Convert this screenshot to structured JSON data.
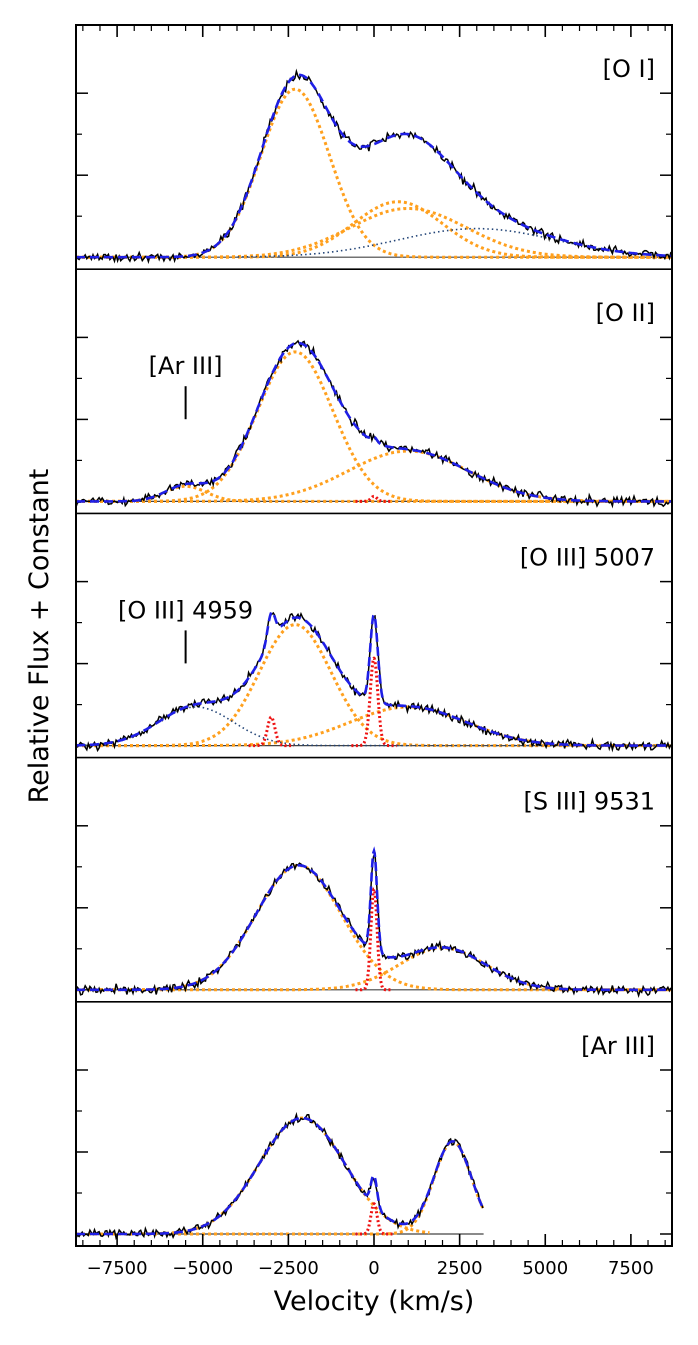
{
  "chart_data": {
    "type": "line",
    "xlabel": "Velocity (km/s)",
    "ylabel": "Relative Flux + Constant",
    "xlim": [
      -8700,
      8700
    ],
    "xticks": [
      -7500,
      -5000,
      -2500,
      0,
      2500,
      5000,
      7500
    ],
    "xtick_labels": [
      "−7500",
      "−5000",
      "−2500",
      "0",
      "2500",
      "5000",
      "7500"
    ],
    "colors": {
      "observed": "#000000",
      "total_fit": "#1f1fe6",
      "broad": "#ffa01e",
      "narrow": "#ee1111",
      "baseline": "#444444"
    },
    "panels": [
      {
        "label": "[O I]",
        "annotation": null,
        "peak_flux": 1.0,
        "components": [
          {
            "name": "broad-1",
            "kind": "broad",
            "center": -2300,
            "sigma": 1000,
            "amp": 1.0
          },
          {
            "name": "broad-2",
            "kind": "broad",
            "center": 700,
            "sigma": 1300,
            "amp": 0.33
          },
          {
            "name": "broad-3",
            "kind": "broad",
            "center": 1000,
            "sigma": 1700,
            "amp": 0.29
          },
          {
            "name": "wing",
            "kind": "extra",
            "center": 3000,
            "sigma": 2300,
            "amp": 0.17,
            "xmin": -4000
          }
        ],
        "data_range": [
          -8700,
          8700
        ]
      },
      {
        "label": "[O II]",
        "annotation": {
          "text": "[Ar III]",
          "x": -5500
        },
        "peak_flux": 0.9,
        "components": [
          {
            "name": "broad-1",
            "kind": "broad",
            "center": -2300,
            "sigma": 1100,
            "amp": 0.89
          },
          {
            "name": "broad-2",
            "kind": "broad",
            "center": 1000,
            "sigma": 1750,
            "amp": 0.3
          },
          {
            "name": "ar-iii",
            "kind": "broad",
            "center": -5500,
            "sigma": 600,
            "amp": 0.09
          },
          {
            "name": "narrow",
            "kind": "narrow",
            "center": 0,
            "sigma": 90,
            "amp": 0.03
          }
        ],
        "data_range": [
          -8700,
          8700
        ]
      },
      {
        "label": "[O III] 5007",
        "annotation": {
          "text": "[O III] 4959",
          "x": -5500
        },
        "peak_flux": 0.9,
        "components": [
          {
            "name": "broad-1",
            "kind": "broad",
            "center": -2300,
            "sigma": 1050,
            "amp": 0.72
          },
          {
            "name": "broad-2",
            "kind": "broad",
            "center": 1000,
            "sigma": 1700,
            "amp": 0.23
          },
          {
            "name": "blue-4959",
            "kind": "extra",
            "center": -5200,
            "sigma": 1100,
            "amp": 0.23
          },
          {
            "name": "narrow-5007",
            "kind": "narrow",
            "center": 0,
            "sigma": 110,
            "amp": 0.52
          },
          {
            "name": "narrow-4959",
            "kind": "narrow",
            "center": -3000,
            "sigma": 110,
            "amp": 0.17
          }
        ],
        "data_range": [
          -8700,
          8700
        ]
      },
      {
        "label": "[S III] 9531",
        "annotation": null,
        "peak_flux": 1.0,
        "components": [
          {
            "name": "broad-1",
            "kind": "broad",
            "center": -2200,
            "sigma": 1250,
            "amp": 0.74
          },
          {
            "name": "broad-2",
            "kind": "broad",
            "center": 2000,
            "sigma": 1250,
            "amp": 0.25
          },
          {
            "name": "narrow",
            "kind": "narrow",
            "center": 0,
            "sigma": 90,
            "amp": 0.6
          }
        ],
        "data_range": [
          -8700,
          8700
        ]
      },
      {
        "label": "[Ar III]",
        "annotation": null,
        "peak_flux": 0.72,
        "components": [
          {
            "name": "broad-1",
            "kind": "broad",
            "center": -2100,
            "sigma": 1250,
            "amp": 0.69
          },
          {
            "name": "broad-2",
            "kind": "broad",
            "center": 2300,
            "sigma": 550,
            "amp": 0.55
          },
          {
            "name": "narrow",
            "kind": "narrow",
            "center": 0,
            "sigma": 90,
            "amp": 0.18
          }
        ],
        "data_range": [
          -8700,
          3200
        ]
      }
    ]
  }
}
